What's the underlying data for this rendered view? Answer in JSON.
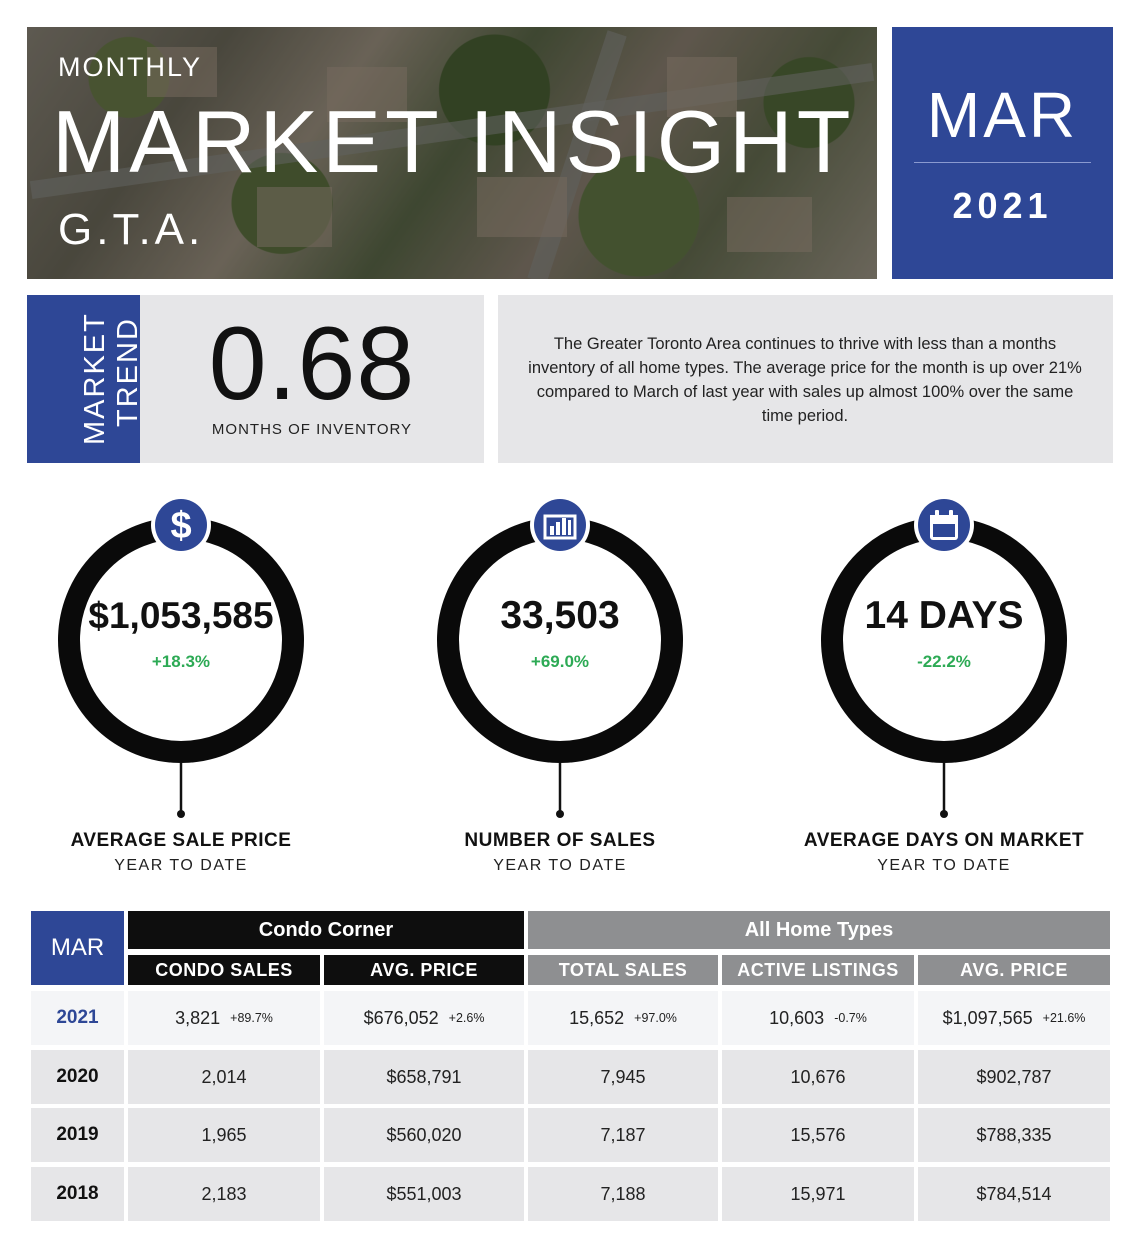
{
  "header": {
    "kicker": "MONTHLY",
    "title": "MARKET INSIGHT",
    "region": "G.T.A.",
    "month": "MAR",
    "year": "2021"
  },
  "trend": {
    "label_line1": "MARKET",
    "label_line2": "TREND",
    "value": "0.68",
    "value_label": "MONTHS OF INVENTORY",
    "description": "The Greater Toronto Area continues to thrive with less than a months inventory of all home types.  The average price for the month is up over 21% compared to March of last year with sales up almost 100% over the same time period."
  },
  "stats": [
    {
      "icon": "dollar-icon",
      "value": "$1,053,585",
      "change": "+18.3%",
      "change_color": "#2daa55",
      "label": "AVERAGE SALE PRICE",
      "sublabel": "YEAR TO DATE"
    },
    {
      "icon": "bar-chart-icon",
      "value": "33,503",
      "change": "+69.0%",
      "change_color": "#2daa55",
      "label": "NUMBER OF SALES",
      "sublabel": "YEAR TO DATE"
    },
    {
      "icon": "calendar-icon",
      "value": "14 DAYS",
      "change": "-22.2%",
      "change_color": "#2daa55",
      "label": "AVERAGE DAYS ON MARKET",
      "sublabel": "YEAR TO DATE"
    }
  ],
  "table": {
    "corner": "MAR",
    "group_condo": "Condo Corner",
    "group_all": "All Home Types",
    "columns": [
      "CONDO SALES",
      "AVG. PRICE",
      "TOTAL SALES",
      "ACTIVE LISTINGS",
      "AVG. PRICE"
    ],
    "rows": [
      {
        "year": "2021",
        "cells": [
          {
            "value": "3,821",
            "change": "+89.7%"
          },
          {
            "value": "$676,052",
            "change": "+2.6%"
          },
          {
            "value": "15,652",
            "change": "+97.0%"
          },
          {
            "value": "10,603",
            "change": "-0.7%"
          },
          {
            "value": "$1,097,565",
            "change": "+21.6%"
          }
        ]
      },
      {
        "year": "2020",
        "cells": [
          {
            "value": "2,014"
          },
          {
            "value": "$658,791"
          },
          {
            "value": "7,945"
          },
          {
            "value": "10,676"
          },
          {
            "value": "$902,787"
          }
        ]
      },
      {
        "year": "2019",
        "cells": [
          {
            "value": "1,965"
          },
          {
            "value": "$560,020"
          },
          {
            "value": "7,187"
          },
          {
            "value": "15,576"
          },
          {
            "value": "$788,335"
          }
        ]
      },
      {
        "year": "2018",
        "cells": [
          {
            "value": "2,183"
          },
          {
            "value": "$551,003"
          },
          {
            "value": "7,188"
          },
          {
            "value": "15,971"
          },
          {
            "value": "$784,514"
          }
        ]
      }
    ]
  },
  "colors": {
    "navy": "#2e4796",
    "black": "#0e0e0e",
    "grey": "#8e8f91",
    "panel": "#e6e6e8",
    "positive": "#2daa55"
  }
}
